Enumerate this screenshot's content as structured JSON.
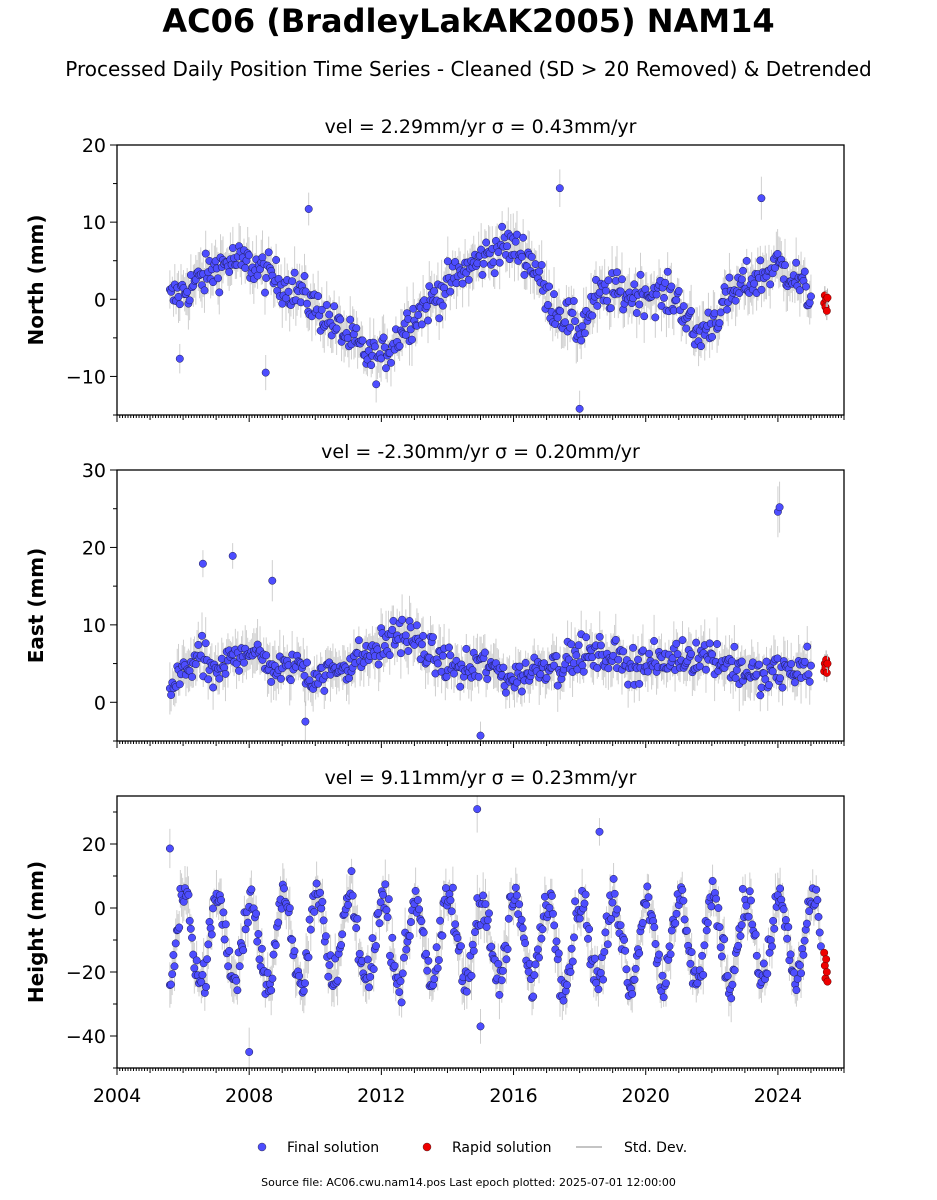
{
  "title": "AC06 (BradleyLakAK2005) NAM14",
  "subtitle": "Processed Daily Position Time Series - Cleaned (SD > 20 Removed) & Detrended",
  "footer": "Source file: AC06.cwu.nam14.pos  Last epoch plotted: 2025-07-01 12:00:00",
  "colors": {
    "final": "#4d4dff",
    "rapid": "#ee0000",
    "stddev": "#b0b0b0"
  },
  "chart_data": [
    {
      "type": "scatter",
      "panel_title": "vel = 2.29mm/yr   σ = 0.43mm/yr",
      "ylabel": "North (mm)",
      "xlim": [
        2004.0,
        2026.0
      ],
      "ylim": [
        -15,
        20
      ],
      "yticks": [
        -10,
        0,
        10,
        20
      ],
      "xticks": [
        2004,
        2008,
        2012,
        2016,
        2020,
        2024
      ],
      "series": [
        {
          "name": "Final solution",
          "x": [
            2005.6,
            2006.0,
            2006.5,
            2007.0,
            2007.5,
            2008.0,
            2008.5,
            2009.0,
            2009.5,
            2010.0,
            2010.5,
            2011.0,
            2011.5,
            2011.9,
            2012.3,
            2012.8,
            2013.3,
            2013.8,
            2014.3,
            2014.8,
            2015.3,
            2015.8,
            2016.3,
            2016.7,
            2017.0,
            2017.5,
            2018.0,
            2018.5,
            2019.0,
            2019.5,
            2020.0,
            2020.5,
            2021.0,
            2021.5,
            2022.0,
            2022.5,
            2023.0,
            2023.5,
            2024.0,
            2024.5,
            2025.0
          ],
          "y": [
            0,
            1,
            2.5,
            4,
            5,
            4.5,
            3.5,
            2,
            1,
            -1,
            -3,
            -5,
            -7,
            -8,
            -6,
            -3,
            -1,
            1,
            3,
            4.5,
            6,
            7,
            6,
            4,
            0,
            -2,
            -4,
            0,
            1,
            0.5,
            1,
            0.5,
            0,
            -5,
            -3,
            0,
            2,
            3,
            4.5,
            3,
            0
          ]
        },
        {
          "name": "Rapid solution",
          "x": [
            2025.4,
            2025.42,
            2025.44,
            2025.46,
            2025.48,
            2025.5
          ],
          "y": [
            -0.5,
            0.5,
            -1,
            0,
            -1.5,
            0.2
          ]
        }
      ],
      "outliers": {
        "x": [
          2009.8,
          2005.9,
          2008.5,
          2017.4,
          2018.0,
          2023.5
        ],
        "y": [
          11.7,
          -7.7,
          -9.5,
          14.4,
          -14.2,
          13.1
        ]
      }
    },
    {
      "type": "scatter",
      "panel_title": "vel = -2.30mm/yr   σ = 0.20mm/yr",
      "ylabel": "East (mm)",
      "xlim": [
        2004.0,
        2026.0
      ],
      "ylim": [
        -5,
        30
      ],
      "yticks": [
        0,
        10,
        20,
        30
      ],
      "xticks": [
        2004,
        2008,
        2012,
        2016,
        2020,
        2024
      ],
      "series": [
        {
          "name": "Final solution",
          "x": [
            2005.6,
            2006.0,
            2006.5,
            2007.0,
            2007.5,
            2008.0,
            2008.5,
            2009.0,
            2009.5,
            2010.0,
            2010.5,
            2011.0,
            2011.5,
            2012.0,
            2012.5,
            2013.0,
            2013.5,
            2014.0,
            2014.5,
            2015.0,
            2015.5,
            2016.0,
            2016.5,
            2017.0,
            2017.5,
            2018.0,
            2018.5,
            2019.0,
            2019.5,
            2020.0,
            2020.5,
            2021.0,
            2021.5,
            2022.0,
            2022.5,
            2023.0,
            2023.5,
            2024.0,
            2024.5,
            2025.0
          ],
          "y": [
            1,
            4,
            6,
            3,
            6,
            7,
            5,
            4,
            5,
            3,
            4,
            5,
            6,
            7,
            9,
            8,
            6,
            5,
            4,
            5,
            4,
            3,
            4,
            5,
            5,
            6,
            6,
            6,
            5,
            5,
            5,
            6,
            6,
            6,
            5,
            4,
            3,
            4,
            4,
            5
          ]
        },
        {
          "name": "Rapid solution",
          "x": [
            2025.4,
            2025.42,
            2025.44,
            2025.46,
            2025.48,
            2025.5
          ],
          "y": [
            4,
            5,
            4.5,
            5.5,
            3.8,
            5
          ]
        }
      ],
      "outliers": {
        "x": [
          2006.6,
          2007.5,
          2008.7,
          2015.0,
          2024.0,
          2024.05,
          2009.7
        ],
        "y": [
          17.9,
          18.9,
          15.7,
          -4.3,
          24.6,
          25.2,
          -2.5
        ]
      }
    },
    {
      "type": "scatter",
      "panel_title": "vel = 9.11mm/yr   σ = 0.23mm/yr",
      "ylabel": "Height (mm)",
      "xlim": [
        2004.0,
        2026.0
      ],
      "ylim": [
        -50,
        35
      ],
      "yticks": [
        -40,
        -20,
        0,
        20
      ],
      "xticks": [
        2004,
        2008,
        2012,
        2016,
        2020,
        2024
      ],
      "series": [
        {
          "name": "Final solution",
          "mean": -10,
          "amplitude": 13,
          "x_start": 2005.6,
          "x_end": 2025.3
        },
        {
          "name": "Rapid solution",
          "x": [
            2025.4,
            2025.42,
            2025.44,
            2025.46,
            2025.48,
            2025.5
          ],
          "y": [
            -14,
            -18,
            -22,
            -16,
            -20,
            -23
          ]
        }
      ],
      "outliers": {
        "x": [
          2005.6,
          2014.9,
          2018.6,
          2008.0,
          2015.0
        ],
        "y": [
          18.6,
          30.9,
          23.8,
          -45.0,
          -37.0
        ]
      }
    }
  ],
  "legend": [
    {
      "label": "Final solution",
      "kind": "final"
    },
    {
      "label": "Rapid solution",
      "kind": "rapid"
    },
    {
      "label": "Std. Dev.",
      "kind": "stddev"
    }
  ]
}
